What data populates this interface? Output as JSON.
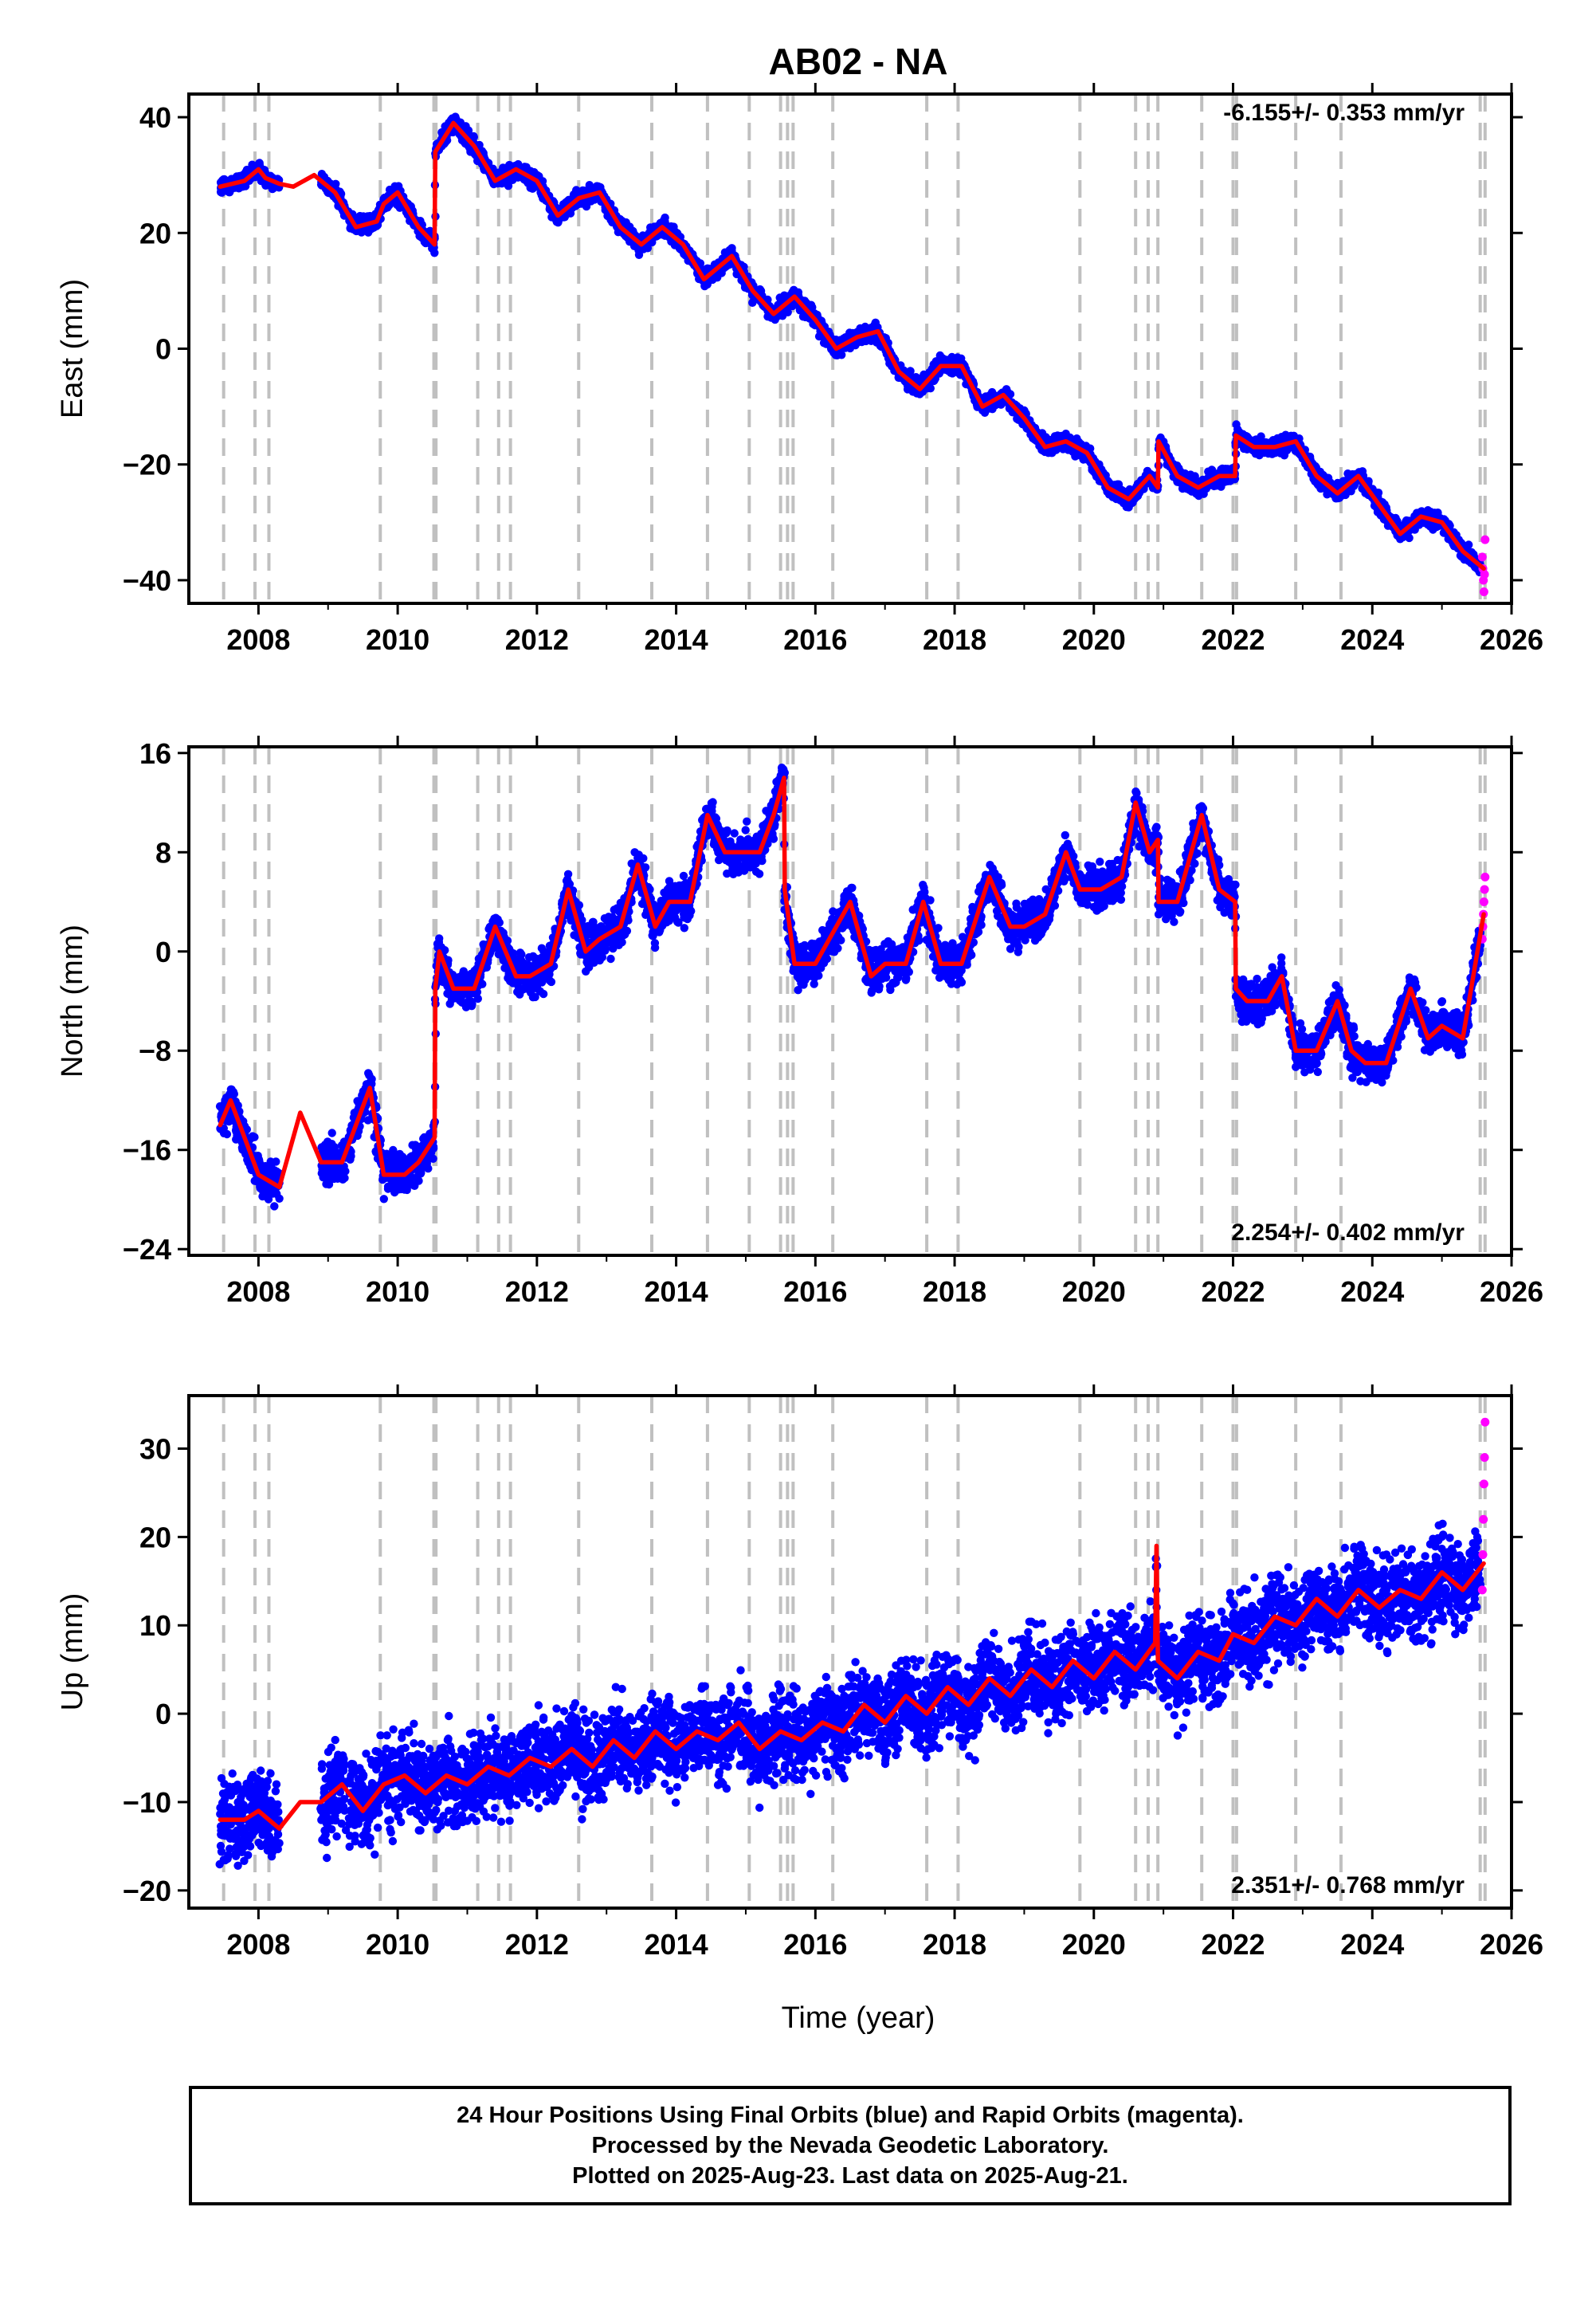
{
  "title": "AB02 - NA",
  "xlabel": "Time (year)",
  "colors": {
    "final": "#0000ff",
    "rapid": "#ff00ff",
    "model": "#ff0000",
    "steps": "#c0c0c0"
  },
  "footer": [
    "24 Hour Positions Using Final Orbits (blue) and Rapid Orbits (magenta).",
    "Processed by the Nevada Geodetic Laboratory.",
    "Plotted on 2025-Aug-23. Last data on 2025-Aug-21."
  ],
  "chart_data": [
    {
      "type": "scatter",
      "ylabel": "East (mm)",
      "rate": "-6.155+/- 0.353 mm/yr",
      "xlim": [
        2007.0,
        2026.0
      ],
      "ylim": [
        -44,
        44
      ],
      "xticks": [
        2008,
        2010,
        2012,
        2014,
        2016,
        2018,
        2020,
        2022,
        2024,
        2026
      ],
      "xticklabels": [
        "2008",
        "2010",
        "2012",
        "2014",
        "2016",
        "2018",
        "2020",
        "2022",
        "2024",
        "2026"
      ],
      "yticks": [
        -40,
        -20,
        0,
        20,
        40
      ],
      "yticklabels": [
        "−40",
        "−20",
        "0",
        "20",
        "40"
      ],
      "model": {
        "x": [
          2007.45,
          2007.8,
          2008.0,
          2008.1,
          2008.3,
          2008.5,
          2008.8,
          2009.1,
          2009.4,
          2009.7,
          2009.8,
          2010.0,
          2010.3,
          2010.53,
          2010.54,
          2010.8,
          2011.1,
          2011.4,
          2011.7,
          2012.0,
          2012.3,
          2012.6,
          2012.9,
          2013.2,
          2013.5,
          2013.8,
          2014.1,
          2014.4,
          2014.8,
          2015.1,
          2015.4,
          2015.7,
          2016.0,
          2016.3,
          2016.6,
          2016.9,
          2017.2,
          2017.5,
          2017.8,
          2018.1,
          2018.4,
          2018.7,
          2019.0,
          2019.3,
          2019.6,
          2019.9,
          2020.2,
          2020.5,
          2020.8,
          2020.92,
          2020.93,
          2021.2,
          2021.5,
          2021.8,
          2022.03,
          2022.04,
          2022.3,
          2022.6,
          2022.9,
          2023.2,
          2023.5,
          2023.8,
          2024.1,
          2024.4,
          2024.7,
          2025.0,
          2025.3,
          2025.6
        ],
        "y": [
          28,
          29,
          31,
          29.5,
          28.5,
          28,
          30,
          27,
          21,
          22,
          25,
          27,
          21,
          18,
          34,
          39,
          35,
          29,
          31,
          29,
          23,
          26,
          27,
          21,
          18,
          21,
          18,
          12,
          16,
          10,
          6,
          9,
          5,
          0,
          2,
          3,
          -4,
          -7,
          -3,
          -3,
          -10,
          -8,
          -12,
          -17,
          -16,
          -18,
          -24,
          -26,
          -22,
          -24,
          -16,
          -22,
          -24,
          -22,
          -22,
          -15,
          -17,
          -17,
          -16,
          -22,
          -25,
          -22,
          -27,
          -32,
          -29,
          -30,
          -35,
          -38
        ]
      },
      "rapid_y": [
        -36,
        -38,
        -40,
        -42,
        -39,
        -33
      ],
      "vlines": [
        2007.5,
        2007.95,
        2008.15,
        2009.75,
        2010.52,
        2010.55,
        2011.15,
        2011.45,
        2011.62,
        2012.6,
        2013.65,
        2014.45,
        2015.05,
        2015.5,
        2015.6,
        2015.68,
        2016.25,
        2017.6,
        2018.05,
        2019.8,
        2020.6,
        2020.78,
        2020.92,
        2021.55,
        2022.0,
        2022.05,
        2022.9,
        2023.55,
        2025.55,
        2025.62
      ]
    },
    {
      "type": "scatter",
      "ylabel": "North (mm)",
      "rate": "2.254+/- 0.402 mm/yr",
      "xlim": [
        2007.0,
        2026.0
      ],
      "ylim": [
        -24.5,
        16.5
      ],
      "xticks": [
        2008,
        2010,
        2012,
        2014,
        2016,
        2018,
        2020,
        2022,
        2024,
        2026
      ],
      "xticklabels": [
        "2008",
        "2010",
        "2012",
        "2014",
        "2016",
        "2018",
        "2020",
        "2022",
        "2024",
        "2026"
      ],
      "yticks": [
        -24,
        -16,
        -8,
        0,
        8,
        16
      ],
      "yticklabels": [
        "−24",
        "−16",
        "−8",
        "0",
        "8",
        "16"
      ],
      "model": {
        "x": [
          2007.45,
          2007.6,
          2007.8,
          2008.0,
          2008.3,
          2008.6,
          2008.9,
          2009.2,
          2009.6,
          2009.8,
          2010.1,
          2010.3,
          2010.53,
          2010.54,
          2010.6,
          2010.8,
          2011.1,
          2011.4,
          2011.7,
          2011.9,
          2012.2,
          2012.45,
          2012.7,
          2012.9,
          2013.2,
          2013.45,
          2013.7,
          2013.9,
          2014.2,
          2014.45,
          2014.7,
          2014.9,
          2015.2,
          2015.4,
          2015.55,
          2015.56,
          2015.7,
          2016.0,
          2016.2,
          2016.5,
          2016.8,
          2017.0,
          2017.3,
          2017.55,
          2017.8,
          2018.1,
          2018.5,
          2018.8,
          2019.0,
          2019.3,
          2019.6,
          2019.8,
          2020.1,
          2020.4,
          2020.6,
          2020.8,
          2020.92,
          2020.93,
          2021.2,
          2021.55,
          2021.8,
          2022.03,
          2022.04,
          2022.2,
          2022.5,
          2022.7,
          2022.9,
          2023.2,
          2023.5,
          2023.7,
          2023.9,
          2024.2,
          2024.55,
          2024.8,
          2025.0,
          2025.3,
          2025.6
        ],
        "y": [
          -14,
          -12,
          -15,
          -18,
          -19,
          -13,
          -17,
          -17,
          -11,
          -18,
          -18,
          -17,
          -15,
          -3,
          0,
          -3,
          -3,
          2,
          -2,
          -2,
          -1,
          5,
          0,
          1,
          2,
          7,
          2,
          4,
          4,
          11,
          8,
          8,
          8,
          11,
          14,
          5,
          -1,
          -1,
          1,
          4,
          -2,
          -1,
          -1,
          4,
          -1,
          -1,
          6,
          2,
          2,
          3,
          8,
          5,
          5,
          6,
          12,
          8,
          9,
          4,
          4,
          11,
          5,
          4,
          -3,
          -4,
          -4,
          -2,
          -8,
          -8,
          -4,
          -8,
          -9,
          -9,
          -3,
          -7,
          -6,
          -7,
          3
        ]
      },
      "rapid_y": [
        1,
        2,
        3,
        4,
        5,
        6
      ],
      "vlines": [
        2007.5,
        2007.95,
        2008.15,
        2009.75,
        2010.52,
        2010.55,
        2011.15,
        2011.45,
        2011.62,
        2012.6,
        2013.65,
        2014.45,
        2015.05,
        2015.5,
        2015.6,
        2015.68,
        2016.25,
        2017.6,
        2018.05,
        2019.8,
        2020.6,
        2020.78,
        2020.92,
        2021.55,
        2022.0,
        2022.05,
        2022.9,
        2023.55,
        2025.55,
        2025.62
      ]
    },
    {
      "type": "scatter",
      "ylabel": "Up (mm)",
      "rate": "2.351+/- 0.768 mm/yr",
      "xlim": [
        2007.0,
        2026.0
      ],
      "ylim": [
        -22,
        36
      ],
      "xticks": [
        2008,
        2010,
        2012,
        2014,
        2016,
        2018,
        2020,
        2022,
        2024,
        2026
      ],
      "xticklabels": [
        "2008",
        "2010",
        "2012",
        "2014",
        "2016",
        "2018",
        "2020",
        "2022",
        "2024",
        "2026"
      ],
      "yticks": [
        -20,
        -10,
        0,
        10,
        20,
        30
      ],
      "yticklabels": [
        "−20",
        "−10",
        "0",
        "10",
        "20",
        "30"
      ],
      "model": {
        "x": [
          2007.45,
          2007.8,
          2008.0,
          2008.3,
          2008.6,
          2008.9,
          2009.2,
          2009.5,
          2009.8,
          2010.1,
          2010.4,
          2010.7,
          2011.0,
          2011.3,
          2011.6,
          2011.9,
          2012.2,
          2012.5,
          2012.8,
          2013.1,
          2013.4,
          2013.7,
          2014.0,
          2014.3,
          2014.6,
          2014.9,
          2015.2,
          2015.5,
          2015.8,
          2016.1,
          2016.4,
          2016.7,
          2017.0,
          2017.3,
          2017.6,
          2017.9,
          2018.2,
          2018.5,
          2018.8,
          2019.1,
          2019.4,
          2019.7,
          2020.0,
          2020.3,
          2020.6,
          2020.88,
          2020.9,
          2020.92,
          2021.2,
          2021.5,
          2021.8,
          2022.0,
          2022.3,
          2022.6,
          2022.9,
          2023.2,
          2023.5,
          2023.8,
          2024.1,
          2024.4,
          2024.7,
          2025.0,
          2025.3,
          2025.6
        ],
        "y": [
          -12,
          -12,
          -11,
          -13,
          -10,
          -10,
          -8,
          -11,
          -8,
          -7,
          -9,
          -7,
          -8,
          -6,
          -7,
          -5,
          -6,
          -4,
          -6,
          -3,
          -5,
          -2,
          -4,
          -2,
          -3,
          -1,
          -4,
          -2,
          -3,
          -1,
          -2,
          1,
          -1,
          2,
          0,
          3,
          1,
          4,
          2,
          5,
          3,
          6,
          4,
          7,
          5,
          8,
          19,
          6,
          4,
          7,
          6,
          9,
          8,
          11,
          10,
          13,
          11,
          14,
          12,
          14,
          13,
          16,
          14,
          17
        ]
      },
      "rapid_y": [
        14,
        18,
        22,
        26,
        29,
        33
      ],
      "vlines": [
        2007.5,
        2007.95,
        2008.15,
        2009.75,
        2010.52,
        2010.55,
        2011.15,
        2011.45,
        2011.62,
        2012.6,
        2013.65,
        2014.45,
        2015.05,
        2015.5,
        2015.6,
        2015.68,
        2016.25,
        2017.6,
        2018.05,
        2019.8,
        2020.6,
        2020.78,
        2020.92,
        2021.55,
        2022.0,
        2022.05,
        2022.9,
        2023.55,
        2025.55,
        2025.62
      ]
    }
  ]
}
